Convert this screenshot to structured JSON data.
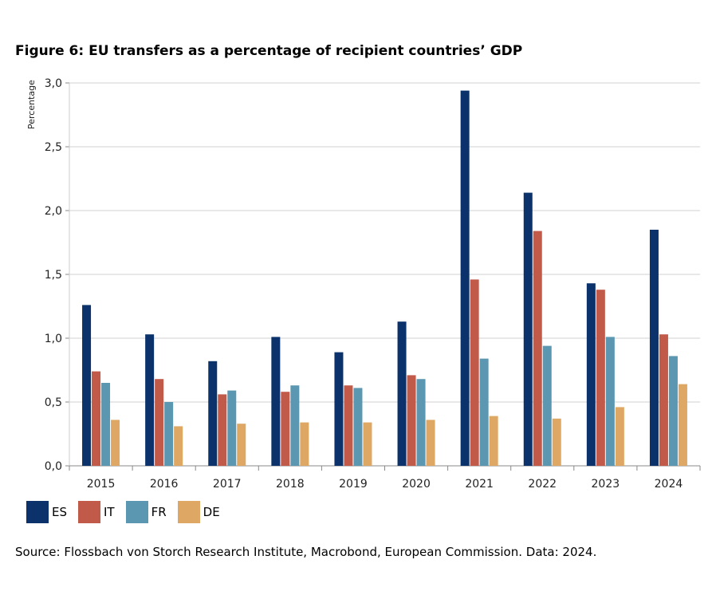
{
  "title": "Figure 6: EU transfers as a percentage of recipient countries’ GDP",
  "source": "Source: Flossbach von Storch Research Institute, Macrobond, European Commission. Data: 2024.",
  "chart_data": {
    "type": "bar",
    "title": "Figure 6: EU transfers as a percentage of recipient countries’ GDP",
    "ylabel": "Percentage",
    "xlabel": "",
    "ylim": [
      0,
      3.0
    ],
    "yticks": [
      "0,0",
      "0,5",
      "1,0",
      "1,5",
      "2,0",
      "2,5",
      "3,0"
    ],
    "grid": true,
    "legend_position": "bottom-left",
    "categories": [
      "2015",
      "2016",
      "2017",
      "2018",
      "2019",
      "2020",
      "2021",
      "2022",
      "2023",
      "2024"
    ],
    "series": [
      {
        "name": "ES",
        "color": "#0b326b",
        "values": [
          1.26,
          1.03,
          0.82,
          1.01,
          0.89,
          1.13,
          2.94,
          2.14,
          1.43,
          1.85
        ]
      },
      {
        "name": "IT",
        "color": "#c25a4a",
        "values": [
          0.74,
          0.68,
          0.56,
          0.58,
          0.63,
          0.71,
          1.46,
          1.84,
          1.38,
          1.03
        ]
      },
      {
        "name": "FR",
        "color": "#5b97b1",
        "values": [
          0.65,
          0.5,
          0.59,
          0.63,
          0.61,
          0.68,
          0.84,
          0.94,
          1.01,
          0.86
        ]
      },
      {
        "name": "DE",
        "color": "#dea764",
        "values": [
          0.36,
          0.31,
          0.33,
          0.34,
          0.34,
          0.36,
          0.39,
          0.37,
          0.46,
          0.64
        ]
      }
    ]
  }
}
